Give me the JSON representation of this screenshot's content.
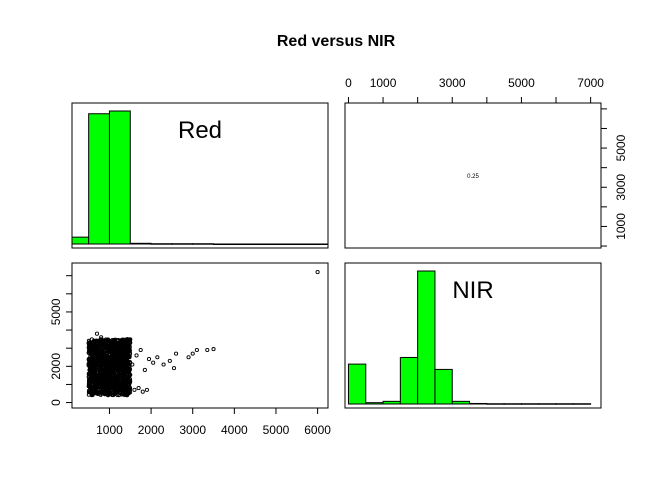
{
  "title": "Red versus NIR",
  "panel_labels": {
    "red": "Red",
    "nir": "NIR"
  },
  "correlation_label": "0.25",
  "colors": {
    "hist_fill": "#00ff00",
    "stroke": "#000000",
    "background": "#ffffff"
  },
  "chart_data": [
    {
      "type": "bar",
      "panel": "top-left",
      "label": "Red",
      "xlim": [
        100,
        6250
      ],
      "bins": [
        {
          "x0": 0,
          "x1": 500,
          "height": 0.05
        },
        {
          "x0": 500,
          "x1": 1000,
          "height": 0.95
        },
        {
          "x0": 1000,
          "x1": 1500,
          "height": 0.97
        },
        {
          "x0": 1500,
          "x1": 2000,
          "height": 0.005
        },
        {
          "x0": 2000,
          "x1": 2500,
          "height": 0.002
        },
        {
          "x0": 2500,
          "x1": 3000,
          "height": 0.002
        },
        {
          "x0": 3000,
          "x1": 3500,
          "height": 0.002
        },
        {
          "x0": 3500,
          "x1": 4000,
          "height": 0
        },
        {
          "x0": 4000,
          "x1": 4500,
          "height": 0
        },
        {
          "x0": 4500,
          "x1": 5000,
          "height": 0
        },
        {
          "x0": 5000,
          "x1": 5500,
          "height": 0
        },
        {
          "x0": 5500,
          "x1": 6000,
          "height": 0
        },
        {
          "x0": 6000,
          "x1": 6500,
          "height": 0
        }
      ]
    },
    {
      "type": "scatter",
      "panel": "bottom-left",
      "xlim": [
        100,
        6250
      ],
      "ylim": [
        -300,
        7700
      ],
      "x_ticks": [
        1000,
        2000,
        3000,
        4000,
        5000,
        6000
      ],
      "x_tick_labels": [
        "1000",
        "2000",
        "3000",
        "4000",
        "5000",
        "6000"
      ],
      "y_ticks": [
        0,
        2000,
        5000
      ],
      "y_tick_labels": [
        "0",
        "2000",
        "5000"
      ],
      "y_minor_ticks": [
        0,
        1000,
        2000,
        3000,
        4000,
        5000,
        6000,
        7000
      ],
      "cluster": {
        "x_range": [
          500,
          1500
        ],
        "y_range": [
          400,
          3500
        ]
      },
      "points": [
        [
          1550,
          2100
        ],
        [
          1650,
          2600
        ],
        [
          1750,
          2900
        ],
        [
          1850,
          1800
        ],
        [
          1950,
          2400
        ],
        [
          2050,
          2200
        ],
        [
          2150,
          2500
        ],
        [
          2300,
          2100
        ],
        [
          2450,
          2300
        ],
        [
          2550,
          1900
        ],
        [
          2600,
          2700
        ],
        [
          2900,
          2500
        ],
        [
          3000,
          2700
        ],
        [
          3100,
          2900
        ],
        [
          3350,
          2900
        ],
        [
          3500,
          2950
        ],
        [
          1600,
          700
        ],
        [
          1700,
          800
        ],
        [
          1800,
          600
        ],
        [
          1900,
          700
        ],
        [
          700,
          3800
        ],
        [
          800,
          3600
        ],
        [
          1300,
          3400
        ],
        [
          1500,
          3300
        ],
        [
          6000,
          7200
        ]
      ]
    },
    {
      "type": "bar",
      "panel": "bottom-right",
      "label": "NIR",
      "xlim": [
        -100,
        7300
      ],
      "x_ticks": [
        0,
        1000,
        3000,
        5000,
        7000
      ],
      "x_tick_labels": [
        "0",
        "1000",
        "3000",
        "5000",
        "7000"
      ],
      "x_minor_ticks": [
        0,
        1000,
        2000,
        3000,
        4000,
        5000,
        6000,
        7000
      ],
      "bins": [
        {
          "x0": 0,
          "x1": 500,
          "height": 0.3
        },
        {
          "x0": 500,
          "x1": 1000,
          "height": 0.01
        },
        {
          "x0": 1000,
          "x1": 1500,
          "height": 0.02
        },
        {
          "x0": 1500,
          "x1": 2000,
          "height": 0.35
        },
        {
          "x0": 2000,
          "x1": 2500,
          "height": 1.0
        },
        {
          "x0": 2500,
          "x1": 3000,
          "height": 0.26
        },
        {
          "x0": 3000,
          "x1": 3500,
          "height": 0.02
        },
        {
          "x0": 3500,
          "x1": 4000,
          "height": 0.004
        },
        {
          "x0": 4000,
          "x1": 4500,
          "height": 0.002
        },
        {
          "x0": 4500,
          "x1": 5000,
          "height": 0.002
        },
        {
          "x0": 5000,
          "x1": 5500,
          "height": 0.002
        },
        {
          "x0": 5500,
          "x1": 6000,
          "height": 0.002
        },
        {
          "x0": 6000,
          "x1": 6500,
          "height": 0.002
        },
        {
          "x0": 6500,
          "x1": 7000,
          "height": 0.002
        }
      ]
    },
    {
      "type": "scatter",
      "panel": "top-right",
      "ylim": [
        -100,
        7300
      ],
      "y_ticks": [
        1000,
        3000,
        5000
      ],
      "y_tick_labels": [
        "1000",
        "3000",
        "5000"
      ],
      "y_minor_ticks": [
        0,
        1000,
        2000,
        3000,
        4000,
        5000,
        6000,
        7000
      ],
      "note": "0.25"
    }
  ]
}
